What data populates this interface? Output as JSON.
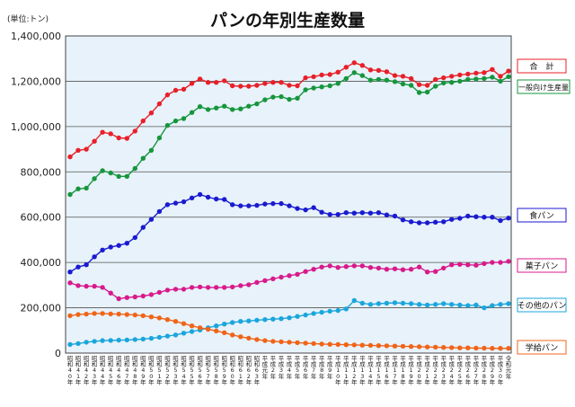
{
  "chart_data": {
    "type": "line",
    "title": "パンの年別生産数量",
    "unit_label": "(単位:トン)",
    "ylim": [
      0,
      1400000
    ],
    "yticks": [
      "0",
      "200,000",
      "400,000",
      "600,000",
      "800,000",
      "1,000,000",
      "1,200,000",
      "1,400,000"
    ],
    "ytick_values": [
      0,
      200000,
      400000,
      600000,
      800000,
      1000000,
      1200000,
      1400000
    ],
    "grid": "horizontal",
    "legend": "right",
    "categories": [
      "昭和40年",
      "昭和41年",
      "昭和42年",
      "昭和43年",
      "昭和44年",
      "昭和45年",
      "昭和46年",
      "昭和47年",
      "昭和48年",
      "昭和49年",
      "昭和50年",
      "昭和51年",
      "昭和52年",
      "昭和53年",
      "昭和54年",
      "昭和55年",
      "昭和56年",
      "昭和57年",
      "昭和58年",
      "昭和59年",
      "昭和60年",
      "昭和61年",
      "昭和62年",
      "昭和63年",
      "平成元年",
      "平成2年",
      "平成3年",
      "平成4年",
      "平成5年",
      "平成6年",
      "平成7年",
      "平成8年",
      "平成9年",
      "平成10年",
      "平成11年",
      "平成12年",
      "平成13年",
      "平成14年",
      "平成15年",
      "平成16年",
      "平成17年",
      "平成18年",
      "平成19年",
      "平成20年",
      "平成21年",
      "平成22年",
      "平成23年",
      "平成24年",
      "平成25年",
      "平成26年",
      "平成27年",
      "平成28年",
      "平成29年",
      "平成30年",
      "令和元年"
    ],
    "series": [
      {
        "name": "合　計",
        "color": "#e8202a",
        "values": [
          866000,
          895000,
          900000,
          935000,
          975000,
          968000,
          950000,
          948000,
          980000,
          1025000,
          1060000,
          1100000,
          1140000,
          1160000,
          1165000,
          1190000,
          1210000,
          1195000,
          1195000,
          1202000,
          1180000,
          1178000,
          1178000,
          1182000,
          1190000,
          1195000,
          1195000,
          1182000,
          1180000,
          1215000,
          1220000,
          1228000,
          1230000,
          1240000,
          1262000,
          1282000,
          1270000,
          1250000,
          1248000,
          1242000,
          1225000,
          1222000,
          1212000,
          1185000,
          1182000,
          1208000,
          1215000,
          1222000,
          1228000,
          1232000,
          1236000,
          1238000,
          1252000,
          1222000,
          1245000
        ]
      },
      {
        "name": "一般向け生産量",
        "color": "#16963c",
        "values": [
          700000,
          725000,
          728000,
          770000,
          805000,
          795000,
          780000,
          780000,
          815000,
          860000,
          895000,
          950000,
          1005000,
          1025000,
          1035000,
          1062000,
          1088000,
          1075000,
          1082000,
          1090000,
          1075000,
          1078000,
          1090000,
          1100000,
          1118000,
          1130000,
          1132000,
          1120000,
          1125000,
          1162000,
          1170000,
          1175000,
          1180000,
          1190000,
          1212000,
          1238000,
          1225000,
          1205000,
          1208000,
          1205000,
          1198000,
          1188000,
          1182000,
          1150000,
          1152000,
          1178000,
          1192000,
          1195000,
          1200000,
          1208000,
          1210000,
          1212000,
          1218000,
          1200000,
          1220000
        ]
      },
      {
        "name": "食パン",
        "color": "#1a1ad0",
        "values": [
          358000,
          380000,
          390000,
          425000,
          455000,
          468000,
          475000,
          485000,
          510000,
          555000,
          590000,
          625000,
          655000,
          662000,
          668000,
          685000,
          700000,
          688000,
          680000,
          678000,
          655000,
          650000,
          650000,
          652000,
          658000,
          660000,
          660000,
          650000,
          638000,
          632000,
          642000,
          622000,
          612000,
          612000,
          620000,
          618000,
          620000,
          618000,
          620000,
          610000,
          605000,
          588000,
          580000,
          575000,
          575000,
          578000,
          580000,
          590000,
          595000,
          605000,
          602000,
          600000,
          600000,
          585000,
          596000
        ]
      },
      {
        "name": "菓子パン",
        "color": "#d81a8c",
        "values": [
          310000,
          298000,
          295000,
          295000,
          290000,
          265000,
          240000,
          245000,
          248000,
          252000,
          258000,
          268000,
          278000,
          282000,
          282000,
          290000,
          292000,
          290000,
          290000,
          290000,
          292000,
          298000,
          302000,
          312000,
          320000,
          328000,
          335000,
          342000,
          348000,
          360000,
          370000,
          380000,
          385000,
          378000,
          382000,
          385000,
          385000,
          378000,
          375000,
          370000,
          372000,
          368000,
          370000,
          380000,
          358000,
          360000,
          375000,
          390000,
          392000,
          390000,
          388000,
          395000,
          400000,
          400000,
          405000
        ]
      },
      {
        "name": "その他のパン",
        "color": "#1aa6dc",
        "values": [
          38000,
          42000,
          48000,
          52000,
          55000,
          56000,
          57000,
          58000,
          60000,
          62000,
          65000,
          70000,
          75000,
          80000,
          88000,
          95000,
          102000,
          112000,
          120000,
          128000,
          135000,
          140000,
          142000,
          145000,
          148000,
          150000,
          152000,
          156000,
          162000,
          168000,
          175000,
          180000,
          185000,
          188000,
          195000,
          232000,
          220000,
          215000,
          218000,
          220000,
          222000,
          220000,
          218000,
          215000,
          212000,
          215000,
          218000,
          215000,
          212000,
          210000,
          212000,
          200000,
          210000,
          215000,
          218000
        ]
      },
      {
        "name": "学給パン",
        "color": "#f06418",
        "values": [
          165000,
          170000,
          172000,
          175000,
          175000,
          173000,
          172000,
          170000,
          168000,
          165000,
          160000,
          155000,
          148000,
          140000,
          130000,
          120000,
          112000,
          105000,
          98000,
          90000,
          80000,
          72000,
          66000,
          60000,
          55000,
          52000,
          50000,
          48000,
          46000,
          44000,
          42000,
          40000,
          39000,
          38000,
          37000,
          36000,
          35000,
          34000,
          33000,
          32000,
          31000,
          30000,
          29000,
          28000,
          27000,
          26000,
          25000,
          24000,
          23000,
          23000,
          22000,
          22000,
          21000,
          21000,
          21000
        ]
      }
    ]
  }
}
